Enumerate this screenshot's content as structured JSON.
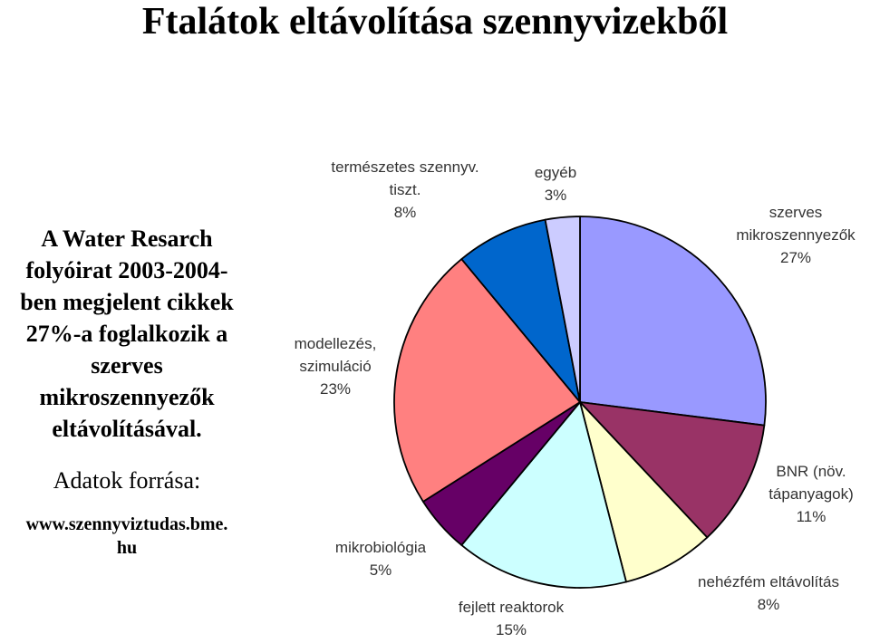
{
  "title": "Ftalátok eltávolítása szennyvizekből",
  "description_lines": [
    "A Water Resarch",
    "folyóirat 2003-2004-",
    "ben megjelent cikkek",
    "27%-a foglalkozik a",
    "szerves",
    "mikroszennyezők",
    "eltávolításával."
  ],
  "source_label": "Adatok forrása:",
  "source_lines": [
    "www.szennyviztudas.bme.",
    "hu"
  ],
  "chart_data": {
    "type": "pie",
    "slices": [
      {
        "label_lines": [
          "szerves",
          "mikroszennyezők"
        ],
        "value": 27,
        "value_label": "27%",
        "color": "#9999ff"
      },
      {
        "label_lines": [
          "BNR (növ.",
          "tápanyagok)"
        ],
        "value": 11,
        "value_label": "11%",
        "color": "#993366"
      },
      {
        "label_lines": [
          "nehézfém eltávolítás"
        ],
        "value": 8,
        "value_label": "8%",
        "color": "#ffffcc"
      },
      {
        "label_lines": [
          "fejlett reaktorok"
        ],
        "value": 15,
        "value_label": "15%",
        "color": "#ccffff"
      },
      {
        "label_lines": [
          "mikrobiológia"
        ],
        "value": 5,
        "value_label": "5%",
        "color": "#660066"
      },
      {
        "label_lines": [
          "modellezés,",
          "szimuláció"
        ],
        "value": 23,
        "value_label": "23%",
        "color": "#ff8080"
      },
      {
        "label_lines": [
          "természetes szennyv.",
          "tiszt."
        ],
        "value": 8,
        "value_label": "8%",
        "color": "#0066cc"
      },
      {
        "label_lines": [
          "egyéb"
        ],
        "value": 3,
        "value_label": "3%",
        "color": "#ccccff"
      }
    ]
  }
}
